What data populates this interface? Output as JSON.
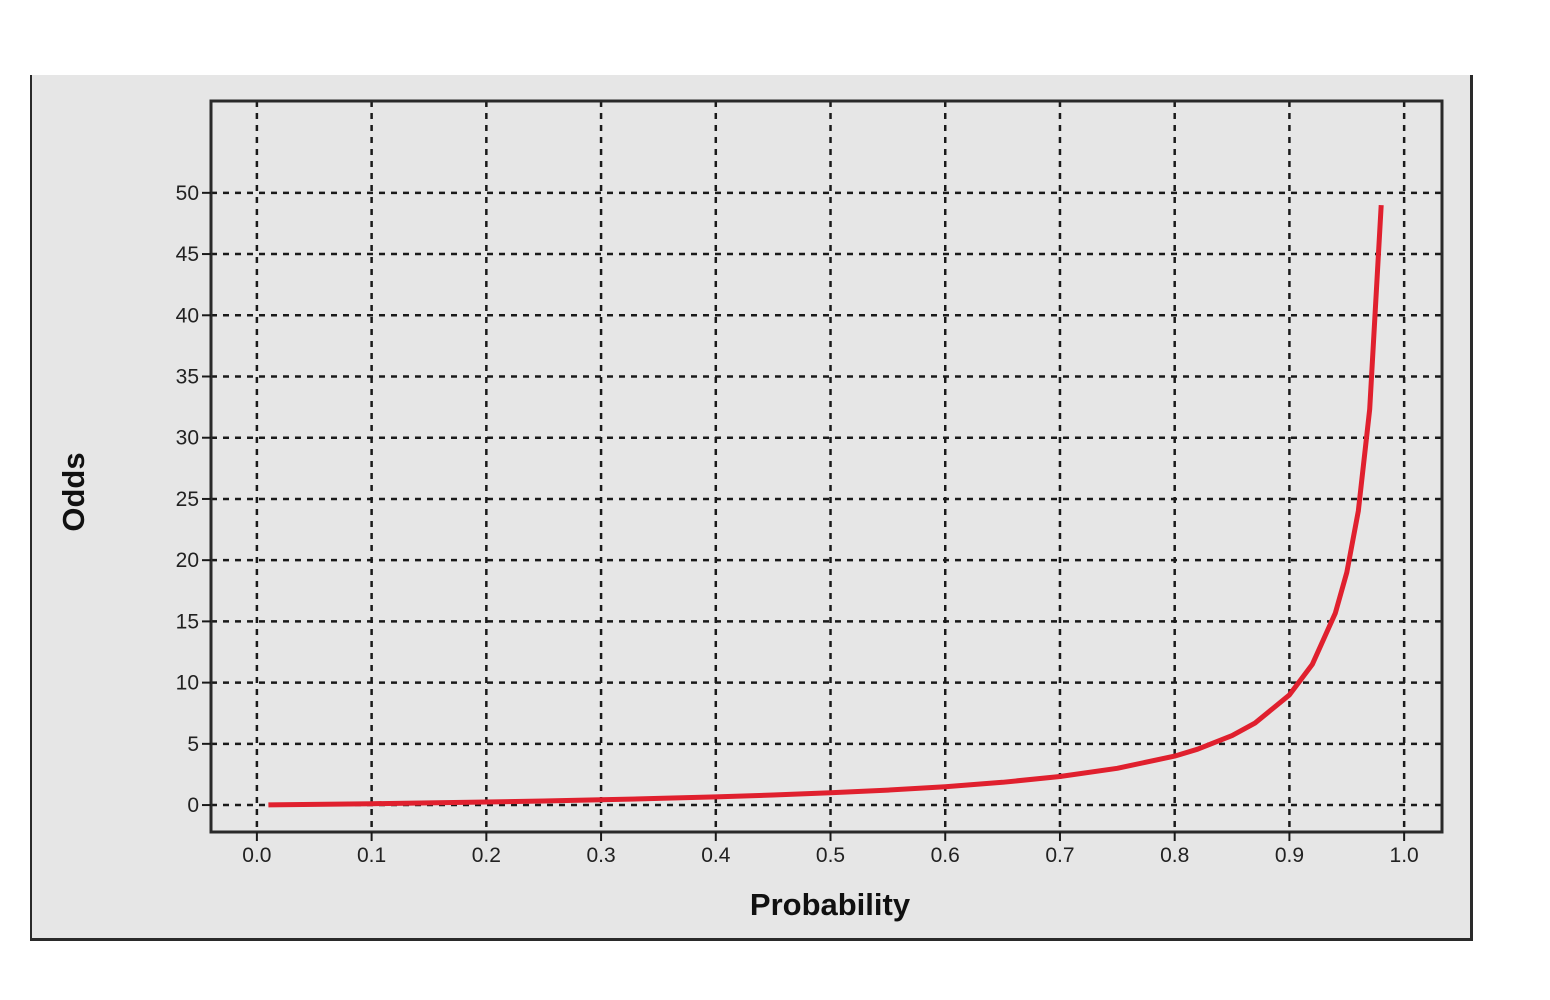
{
  "chart_data": {
    "type": "line",
    "title": "",
    "xlabel": "Probability",
    "ylabel": "Odds",
    "xlim": [
      -0.04,
      1.033
    ],
    "ylim": [
      -2.2,
      57.5
    ],
    "xticks": [
      0.0,
      0.1,
      0.2,
      0.3,
      0.4,
      0.5,
      0.6,
      0.7,
      0.8,
      0.9,
      1.0
    ],
    "xtick_labels": [
      "0.0",
      "0.1",
      "0.2",
      "0.3",
      "0.4",
      "0.5",
      "0.6",
      "0.7",
      "0.8",
      "0.9",
      "1.0"
    ],
    "yticks": [
      0,
      5,
      10,
      15,
      20,
      25,
      30,
      35,
      40,
      45,
      50
    ],
    "ytick_labels": [
      "0",
      "5",
      "10",
      "15",
      "20",
      "25",
      "30",
      "35",
      "40",
      "45",
      "50"
    ],
    "grid": true,
    "legend": "none",
    "series": [
      {
        "color": "#e0202e",
        "x": [
          0.01,
          0.05,
          0.1,
          0.15,
          0.2,
          0.25,
          0.3,
          0.35,
          0.4,
          0.45,
          0.5,
          0.55,
          0.6,
          0.65,
          0.7,
          0.75,
          0.8,
          0.82,
          0.85,
          0.87,
          0.9,
          0.92,
          0.94,
          0.95,
          0.96,
          0.97,
          0.98
        ],
        "y": [
          0.01,
          0.05,
          0.11,
          0.18,
          0.25,
          0.33,
          0.43,
          0.54,
          0.67,
          0.82,
          1.0,
          1.22,
          1.5,
          1.86,
          2.33,
          3.0,
          4.0,
          4.56,
          5.67,
          6.69,
          9.0,
          11.5,
          15.67,
          19.0,
          24.0,
          32.33,
          49.0
        ]
      }
    ]
  }
}
